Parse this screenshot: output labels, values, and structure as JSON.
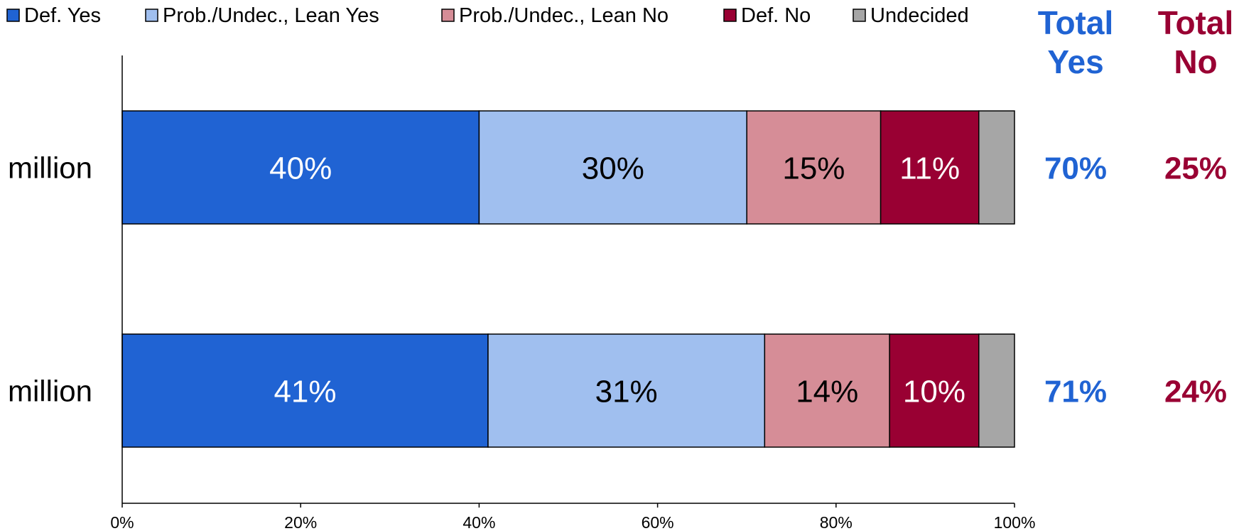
{
  "chart_data": {
    "type": "bar",
    "orientation": "horizontal",
    "stacked": true,
    "title": "",
    "xlabel": "",
    "ylabel": "",
    "xlim": [
      0,
      100
    ],
    "x_ticks": [
      "0%",
      "20%",
      "40%",
      "60%",
      "80%",
      "100%"
    ],
    "categories": [
      "million",
      "million"
    ],
    "legend_position": "top",
    "series": [
      {
        "name": "Def. Yes",
        "color": "#2063D3",
        "label_color": "#ffffff",
        "values": [
          40,
          41
        ],
        "labels": [
          "40%",
          "41%"
        ]
      },
      {
        "name": "Prob./Undec., Lean Yes",
        "color": "#A0BFEF",
        "label_color": "#000000",
        "values": [
          30,
          31
        ],
        "labels": [
          "30%",
          "31%"
        ]
      },
      {
        "name": "Prob./Undec., Lean No",
        "color": "#D68D97",
        "label_color": "#000000",
        "values": [
          15,
          14
        ],
        "labels": [
          "15%",
          "14%"
        ]
      },
      {
        "name": "Def. No",
        "color": "#990033",
        "label_color": "#ffffff",
        "values": [
          11,
          10
        ],
        "labels": [
          "11%",
          "10%"
        ]
      },
      {
        "name": "Undecided",
        "color": "#A6A6A6",
        "label_color": "#000000",
        "values": [
          4,
          4
        ],
        "labels": [
          "",
          ""
        ]
      }
    ],
    "totals": {
      "yes": {
        "header": [
          "Total",
          "Yes"
        ],
        "color": "#2063D3",
        "values": [
          "70%",
          "71%"
        ]
      },
      "no": {
        "header": [
          "Total",
          "No"
        ],
        "color": "#990033",
        "values": [
          "25%",
          "24%"
        ]
      }
    }
  }
}
